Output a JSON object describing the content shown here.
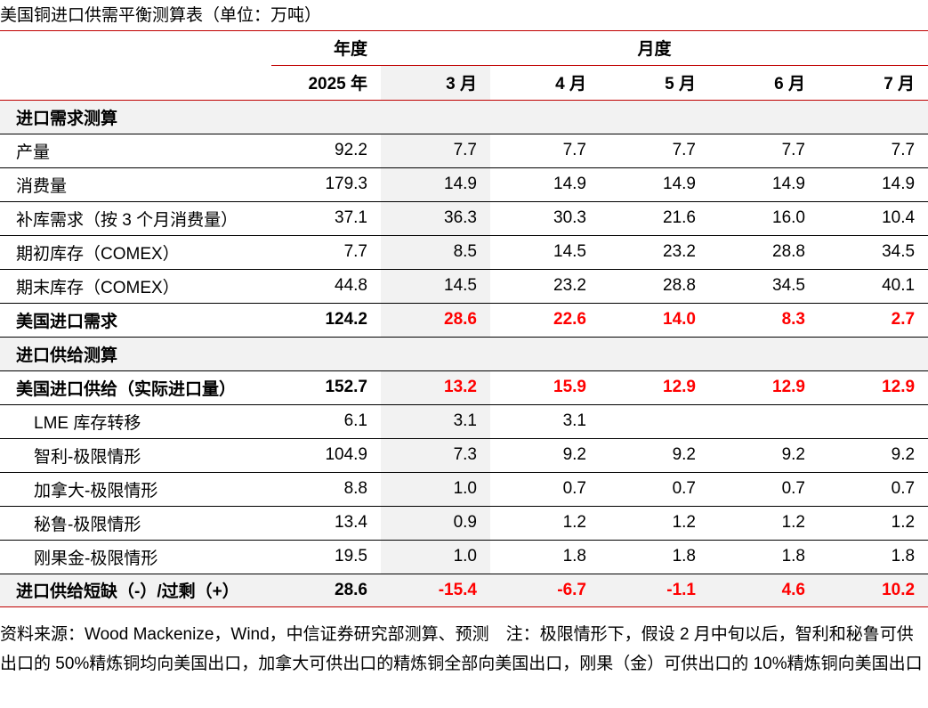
{
  "title": "美国铜进口供需平衡测算表（单位：万吨）",
  "header": {
    "annual": "年度",
    "monthly": "月度",
    "columns": [
      "2025 年",
      "3 月",
      "4 月",
      "5 月",
      "6 月",
      "7 月"
    ]
  },
  "rows": [
    {
      "label": "进口需求测算",
      "type": "section",
      "values": [
        "",
        "",
        "",
        "",
        "",
        ""
      ]
    },
    {
      "label": "产量",
      "type": "normal",
      "values": [
        "92.2",
        "7.7",
        "7.7",
        "7.7",
        "7.7",
        "7.7"
      ]
    },
    {
      "label": "消费量",
      "type": "normal",
      "values": [
        "179.3",
        "14.9",
        "14.9",
        "14.9",
        "14.9",
        "14.9"
      ]
    },
    {
      "label": "补库需求（按 3 个月消费量）",
      "type": "normal",
      "values": [
        "37.1",
        "36.3",
        "30.3",
        "21.6",
        "16.0",
        "10.4"
      ]
    },
    {
      "label": "期初库存（COMEX）",
      "type": "normal",
      "values": [
        "7.7",
        "8.5",
        "14.5",
        "23.2",
        "28.8",
        "34.5"
      ]
    },
    {
      "label": "期末库存（COMEX）",
      "type": "normal",
      "values": [
        "44.8",
        "14.5",
        "23.2",
        "28.8",
        "34.5",
        "40.1"
      ]
    },
    {
      "label": "美国进口需求",
      "type": "bold",
      "values": [
        "124.2",
        "28.6",
        "22.6",
        "14.0",
        "8.3",
        "2.7"
      ]
    },
    {
      "label": "进口供给测算",
      "type": "section",
      "values": [
        "",
        "",
        "",
        "",
        "",
        ""
      ]
    },
    {
      "label": "美国进口供给（实际进口量）",
      "type": "bold",
      "values": [
        "152.7",
        "13.2",
        "15.9",
        "12.9",
        "12.9",
        "12.9"
      ]
    },
    {
      "label": "LME 库存转移",
      "type": "indent",
      "values": [
        "6.1",
        "3.1",
        "3.1",
        "",
        "",
        ""
      ]
    },
    {
      "label": "智利-极限情形",
      "type": "indent",
      "values": [
        "104.9",
        "7.3",
        "9.2",
        "9.2",
        "9.2",
        "9.2"
      ]
    },
    {
      "label": "加拿大-极限情形",
      "type": "indent",
      "values": [
        "8.8",
        "1.0",
        "0.7",
        "0.7",
        "0.7",
        "0.7"
      ]
    },
    {
      "label": "秘鲁-极限情形",
      "type": "indent",
      "values": [
        "13.4",
        "0.9",
        "1.2",
        "1.2",
        "1.2",
        "1.2"
      ]
    },
    {
      "label": "刚果金-极限情形",
      "type": "indent",
      "values": [
        "19.5",
        "1.0",
        "1.8",
        "1.8",
        "1.8",
        "1.8"
      ]
    },
    {
      "label": "进口供给短缺（-）/过剩（+）",
      "type": "last",
      "values": [
        "28.6",
        "-15.4",
        "-6.7",
        "-1.1",
        "4.6",
        "10.2"
      ]
    }
  ],
  "highlight_color": "#ff0000",
  "note": "资料来源：Wood Mackenize，Wind，中信证券研究部测算、预测　注：极限情形下，假设 2 月中旬以后，智利和秘鲁可供出口的 50%精炼铜均向美国出口，加拿大可供出口的精炼铜全部向美国出口，刚果（金）可供出口的 10%精炼铜向美国出口"
}
